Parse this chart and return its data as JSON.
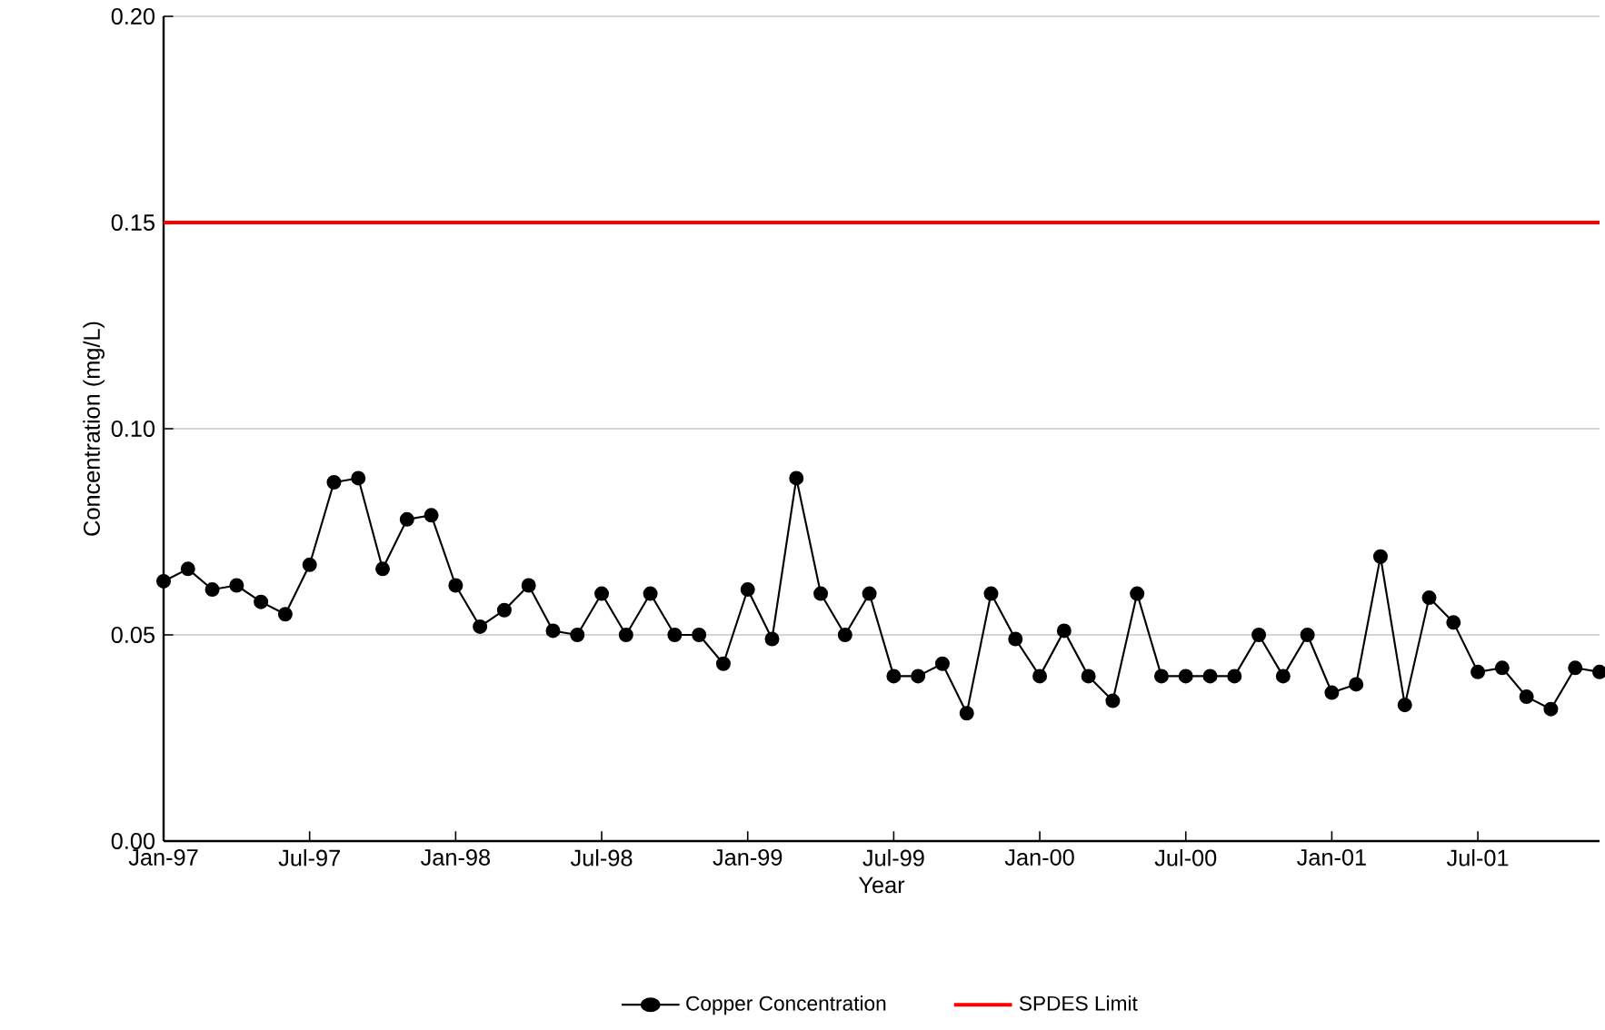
{
  "chart_data": {
    "type": "line",
    "xlabel": "Year",
    "ylabel": "Concentration (mg/L)",
    "x": [
      "1997-01",
      "1997-02",
      "1997-03",
      "1997-04",
      "1997-05",
      "1997-06",
      "1997-07",
      "1997-08",
      "1997-09",
      "1997-10",
      "1997-11",
      "1997-12",
      "1998-01",
      "1998-02",
      "1998-03",
      "1998-04",
      "1998-05",
      "1998-06",
      "1998-07",
      "1998-08",
      "1998-09",
      "1998-10",
      "1998-11",
      "1998-12",
      "1999-01",
      "1999-02",
      "1999-03",
      "1999-04",
      "1999-05",
      "1999-06",
      "1999-07",
      "1999-08",
      "1999-09",
      "1999-10",
      "1999-11",
      "1999-12",
      "2000-01",
      "2000-02",
      "2000-03",
      "2000-04",
      "2000-05",
      "2000-06",
      "2000-07",
      "2000-08",
      "2000-09",
      "2000-10",
      "2000-11",
      "2000-12",
      "2001-01",
      "2001-02",
      "2001-03",
      "2001-04",
      "2001-05",
      "2001-06",
      "2001-07",
      "2001-08",
      "2001-09",
      "2001-10",
      "2001-11",
      "2001-12"
    ],
    "series": [
      {
        "name": "Copper Concentration",
        "color": "#000000",
        "values": [
          0.063,
          0.066,
          0.061,
          0.062,
          0.058,
          0.055,
          0.067,
          0.087,
          0.088,
          0.066,
          0.078,
          0.079,
          0.062,
          0.052,
          0.056,
          0.062,
          0.051,
          0.05,
          0.06,
          0.05,
          0.06,
          0.05,
          0.05,
          0.043,
          0.061,
          0.049,
          0.088,
          0.06,
          0.05,
          0.06,
          0.04,
          0.04,
          0.043,
          0.031,
          0.06,
          0.049,
          0.04,
          0.051,
          0.04,
          0.034,
          0.06,
          0.04,
          0.04,
          0.04,
          0.04,
          0.05,
          0.04,
          0.05,
          0.036,
          0.038,
          0.069,
          0.033,
          0.059,
          0.053,
          0.041,
          0.042,
          0.035,
          0.032,
          0.042,
          0.041
        ]
      }
    ],
    "ref_lines": [
      {
        "axis": "y",
        "value": 0.15,
        "label": "SPDES Limit",
        "color": "#ff0000"
      }
    ],
    "xlim": [
      "1997-01",
      "2001-12"
    ],
    "xticks": [
      {
        "value": "1997-01",
        "label": "Jan-97"
      },
      {
        "value": "1997-07",
        "label": "Jul-97"
      },
      {
        "value": "1998-01",
        "label": "Jan-98"
      },
      {
        "value": "1998-07",
        "label": "Jul-98"
      },
      {
        "value": "1999-01",
        "label": "Jan-99"
      },
      {
        "value": "1999-07",
        "label": "Jul-99"
      },
      {
        "value": "2000-01",
        "label": "Jan-00"
      },
      {
        "value": "2000-07",
        "label": "Jul-00"
      },
      {
        "value": "2001-01",
        "label": "Jan-01"
      },
      {
        "value": "2001-07",
        "label": "Jul-01"
      }
    ],
    "ylim": [
      0,
      0.2
    ],
    "yticks": [
      {
        "value": 0,
        "label": "0.00"
      },
      {
        "value": 0.05,
        "label": "0.05"
      },
      {
        "value": 0.1,
        "label": "0.10"
      },
      {
        "value": 0.15,
        "label": "0.15"
      },
      {
        "value": 0.2,
        "label": "0.20"
      }
    ],
    "grid": "y",
    "legend": "bottom",
    "marker": "circle",
    "line_style": "solid"
  }
}
